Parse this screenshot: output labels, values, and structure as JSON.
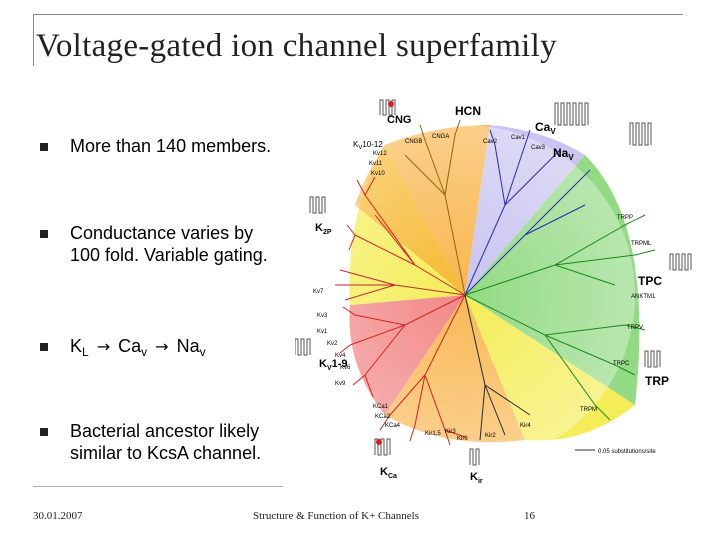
{
  "slide": {
    "title": "Voltage-gated ion channel superfamily",
    "bullets": [
      {
        "text": "More than 140 members."
      },
      {
        "line1": "Conductance varies by",
        "line2": "100 fold. Variable gating."
      },
      {
        "k": "K",
        "ksub": "L",
        "ca": "Ca",
        "casub": "v",
        "na": "Na",
        "nasub": "v"
      },
      {
        "line1": "Bacterial ancestor likely",
        "line2": "similar to KcsA channel."
      }
    ]
  },
  "figure": {
    "labels": {
      "cng": "CNG",
      "hcn": "HCN",
      "cav": "Ca",
      "cav_sub": "V",
      "nav": "Na",
      "nav_sub": "V",
      "k2p": "K",
      "k2p_sub": "2P",
      "tpc": "TPC",
      "trp": "TRP",
      "kv19": "K",
      "kv19_sub": "V",
      "kv19_rest": "1-9",
      "kca": "K",
      "kca_sub": "Ca",
      "kir": "K",
      "kir_sub": "ir",
      "kv1012": "K",
      "kv1012_sub": "V",
      "kv1012_rest": "10-12",
      "cngb": "CNGB",
      "cnga": "CNGA",
      "kv12": "Kv12",
      "kv11": "Kv11",
      "kv10": "Kv10",
      "cav2": "Cav2",
      "cav1": "Cav1",
      "cav3": "Cav3",
      "trpp": "TRPP",
      "trpml": "TRPML",
      "ankm1": "ANKTM1",
      "trpv": "TRPV",
      "trpc": "TRPC",
      "trpm": "TRPM",
      "kv7": "Kv7",
      "kv3": "Kv3",
      "kv1": "Kv1",
      "kv2": "Kv2",
      "kv4": "Kv4",
      "kv6": "Kv6",
      "kv9": "Kv9",
      "kca1": "KCa1",
      "kca2": "KCa2",
      "kca4": "KCa4",
      "kir15": "Kir1,5",
      "kir3": "Kir3",
      "kir6": "Kir6",
      "kir2": "Kir2",
      "kir4": "Kir4",
      "scale": "0.05 substitutions/site"
    },
    "colors": {
      "orange": "#f7a21f",
      "yellow": "#f2ea3a",
      "red": "#e8423c",
      "blue": "#4a4ad8",
      "green": "#3fb93a",
      "lavender": "#c9c4f0"
    }
  },
  "footer": {
    "date": "30.01.2007",
    "title": "Structure & Function of K+ Channels",
    "page": "16"
  }
}
